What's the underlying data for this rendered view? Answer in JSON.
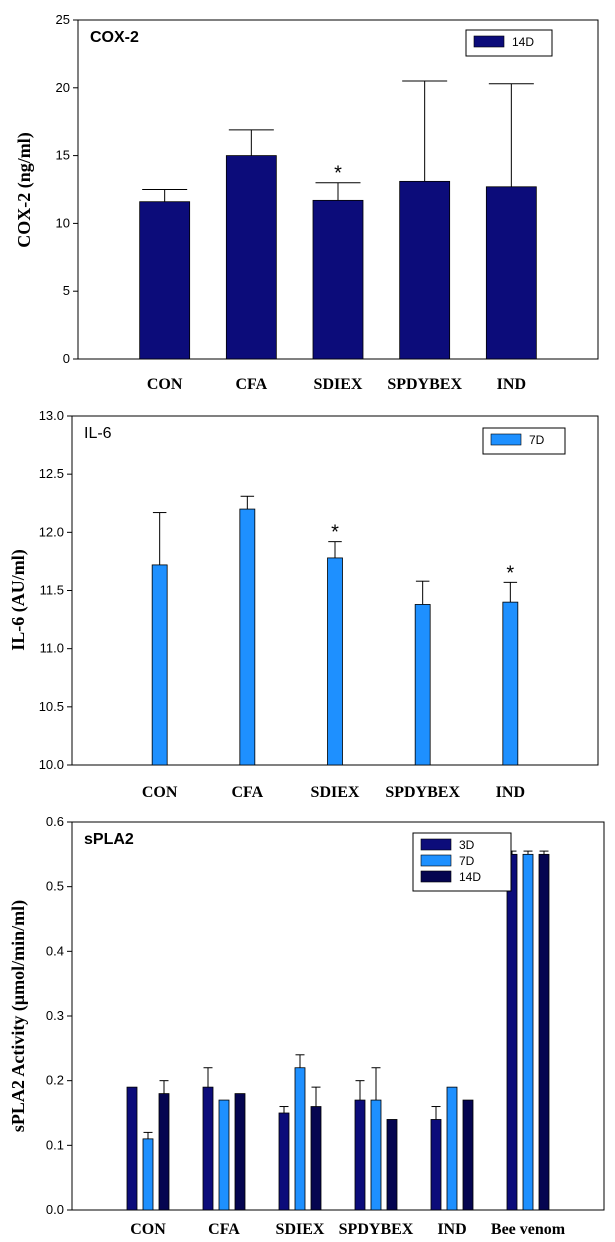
{
  "colors": {
    "dark_navy": "#0c0c7a",
    "light_blue": "#1e90ff",
    "deep_navy": "#050550"
  },
  "chart_data": [
    {
      "type": "bar",
      "title": "COX-2",
      "ylabel": "COX-2 (ng/ml)",
      "xlabel": "",
      "ylim": [
        0,
        25
      ],
      "yticks": [
        "0",
        "5",
        "10",
        "15",
        "20",
        "25"
      ],
      "categories": [
        "CON",
        "CFA",
        "SDIEX",
        "SPDYBEX",
        "IND"
      ],
      "series": [
        {
          "name": "14D",
          "values": [
            11.6,
            15.0,
            11.7,
            13.1,
            12.7
          ],
          "errors": [
            0.9,
            1.9,
            1.3,
            7.4,
            7.6
          ]
        }
      ],
      "annotations": [
        {
          "category_index": 2,
          "text": "*"
        }
      ],
      "legend": "top-right",
      "grid": false
    },
    {
      "type": "bar",
      "title": "IL-6",
      "ylabel": "IL-6 (AU/ml)",
      "xlabel": "",
      "ylim": [
        10.0,
        13.0
      ],
      "yticks": [
        "10.0",
        "10.5",
        "11.0",
        "11.5",
        "12.0",
        "12.5",
        "13.0"
      ],
      "categories": [
        "CON",
        "CFA",
        "SDIEX",
        "SPDYBEX",
        "IND"
      ],
      "series": [
        {
          "name": "7D",
          "values": [
            11.72,
            12.2,
            11.78,
            11.38,
            11.4
          ],
          "errors": [
            0.45,
            0.11,
            0.14,
            0.2,
            0.17
          ]
        }
      ],
      "annotations": [
        {
          "category_index": 2,
          "text": "*"
        },
        {
          "category_index": 4,
          "text": "*"
        }
      ],
      "legend": "top-right",
      "grid": false
    },
    {
      "type": "bar",
      "title": "sPLA2",
      "ylabel": "sPLA2 Activity (μmol/min/ml)",
      "xlabel": "",
      "ylim": [
        0.0,
        0.6
      ],
      "yticks": [
        "0.0",
        "0.1",
        "0.2",
        "0.3",
        "0.4",
        "0.5",
        "0.6"
      ],
      "categories": [
        "CON",
        "CFA",
        "SDIEX",
        "SPDYBEX",
        "IND",
        "Bee venom"
      ],
      "series": [
        {
          "name": "3D",
          "values": [
            0.19,
            0.19,
            0.15,
            0.17,
            0.14,
            0.55
          ],
          "errors": [
            0.0,
            0.03,
            0.01,
            0.03,
            0.02,
            0.005
          ]
        },
        {
          "name": "7D",
          "values": [
            0.11,
            0.17,
            0.22,
            0.17,
            0.19,
            0.55
          ],
          "errors": [
            0.01,
            0.0,
            0.02,
            0.05,
            0.0,
            0.005
          ]
        },
        {
          "name": "14D",
          "values": [
            0.18,
            0.18,
            0.16,
            0.14,
            0.17,
            0.55
          ],
          "errors": [
            0.02,
            0.0,
            0.03,
            0.0,
            0.0,
            0.005
          ]
        }
      ],
      "annotations": [],
      "legend": "top-right",
      "grid": false
    }
  ]
}
